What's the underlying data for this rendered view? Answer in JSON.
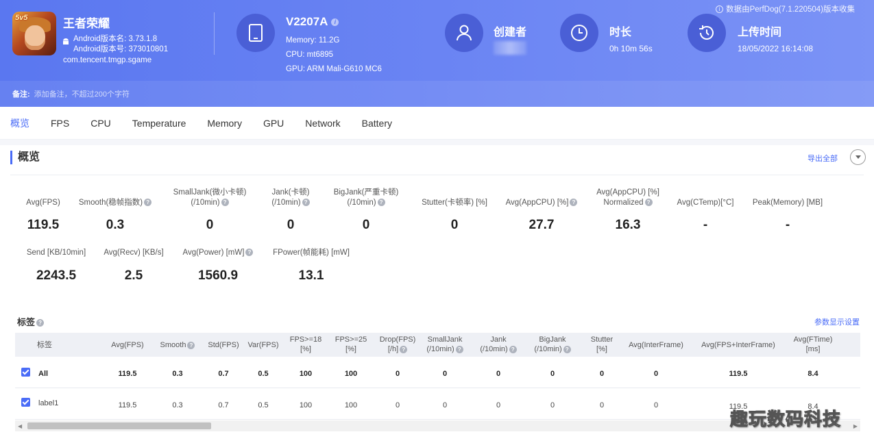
{
  "header": {
    "app_name": "王者荣耀",
    "icon_badge": "5v5",
    "version_name": "Android版本名: 3.73.1.8",
    "version_code": "Android版本号: 373010801",
    "package": "com.tencent.tmgp.sgame",
    "device": {
      "model": "V2207A",
      "memory": "Memory: 11.2G",
      "cpu": "CPU: mt6895",
      "gpu": "GPU: ARM Mali-G610 MC6"
    },
    "creator_label": "创建者",
    "duration_label": "时长",
    "duration_value": "0h 10m 56s",
    "upload_label": "上传时间",
    "upload_value": "18/05/2022 16:14:08",
    "perfdog_note": "数据由PerfDog(7.1.220504)版本收集",
    "note_label": "备注:",
    "note_placeholder": "添加备注，不超过200个字符"
  },
  "tabs": [
    "概览",
    "FPS",
    "CPU",
    "Temperature",
    "Memory",
    "GPU",
    "Network",
    "Battery"
  ],
  "overview": {
    "title": "概览",
    "export_label": "导出全部",
    "metrics_row1": [
      {
        "l1": "",
        "l2": "Avg(FPS)",
        "help": false,
        "value": "119.5"
      },
      {
        "l1": "",
        "l2": "Smooth(稳帧指数)",
        "help": true,
        "value": "0.3"
      },
      {
        "l1": "SmallJank(微小卡顿)",
        "l2": "(/10min)",
        "help": true,
        "value": "0"
      },
      {
        "l1": "Jank(卡顿)",
        "l2": "(/10min)",
        "help": true,
        "value": "0"
      },
      {
        "l1": "BigJank(严重卡顿)",
        "l2": "(/10min)",
        "help": true,
        "value": "0"
      },
      {
        "l1": "",
        "l2": "Stutter(卡顿率) [%]",
        "help": false,
        "value": "0"
      },
      {
        "l1": "",
        "l2": "Avg(AppCPU) [%]",
        "help": true,
        "value": "27.7"
      },
      {
        "l1": "Avg(AppCPU) [%]",
        "l2": "Normalized",
        "help": true,
        "value": "16.3"
      },
      {
        "l1": "",
        "l2": "Avg(CTemp)[°C]",
        "help": false,
        "value": "-"
      },
      {
        "l1": "",
        "l2": "Peak(Memory) [MB]",
        "help": false,
        "value": "-"
      }
    ],
    "metrics_row2": [
      {
        "l2": "Send [KB/10min]",
        "help": false,
        "value": "2243.5"
      },
      {
        "l2": "Avg(Recv) [KB/s]",
        "help": false,
        "value": "2.5"
      },
      {
        "l2": "Avg(Power) [mW]",
        "help": true,
        "value": "1560.9"
      },
      {
        "l2": "FPower(帧能耗) [mW]",
        "help": false,
        "value": "13.1"
      }
    ]
  },
  "tags": {
    "title": "标签",
    "param_label": "参数显示设置",
    "headers": [
      {
        "l1": "标签",
        "l2": "",
        "help": false
      },
      {
        "l1": "Avg(FPS)",
        "l2": "",
        "help": false
      },
      {
        "l1": "Smooth",
        "l2": "",
        "help": true
      },
      {
        "l1": "Std(FPS)",
        "l2": "",
        "help": false
      },
      {
        "l1": "Var(FPS)",
        "l2": "",
        "help": false
      },
      {
        "l1": "FPS>=18",
        "l2": "[%]",
        "help": false
      },
      {
        "l1": "FPS>=25",
        "l2": "[%]",
        "help": false
      },
      {
        "l1": "Drop(FPS)",
        "l2": "[/h]",
        "help": true
      },
      {
        "l1": "SmallJank",
        "l2": "(/10min)",
        "help": true
      },
      {
        "l1": "Jank",
        "l2": "(/10min)",
        "help": true
      },
      {
        "l1": "BigJank",
        "l2": "(/10min)",
        "help": true
      },
      {
        "l1": "Stutter",
        "l2": "[%]",
        "help": false
      },
      {
        "l1": "Avg(InterFrame)",
        "l2": "",
        "help": false
      },
      {
        "l1": "Avg(FPS+InterFrame)",
        "l2": "",
        "help": false
      },
      {
        "l1": "Avg(FTime)",
        "l2": "[ms]",
        "help": false
      }
    ],
    "rows": [
      {
        "name": "All",
        "bold": true,
        "values": [
          "119.5",
          "0.3",
          "0.7",
          "0.5",
          "100",
          "100",
          "0",
          "0",
          "0",
          "0",
          "0",
          "0",
          "119.5",
          "8.4"
        ]
      },
      {
        "name": "label1",
        "bold": false,
        "values": [
          "119.5",
          "0.3",
          "0.7",
          "0.5",
          "100",
          "100",
          "0",
          "0",
          "0",
          "0",
          "0",
          "0",
          "119.5",
          "8.4"
        ]
      }
    ]
  },
  "watermark": "趣玩数码科技",
  "colors": {
    "accent": "#4a6cf7",
    "header_start": "#5a77f0",
    "header_end": "#7b93f6"
  }
}
